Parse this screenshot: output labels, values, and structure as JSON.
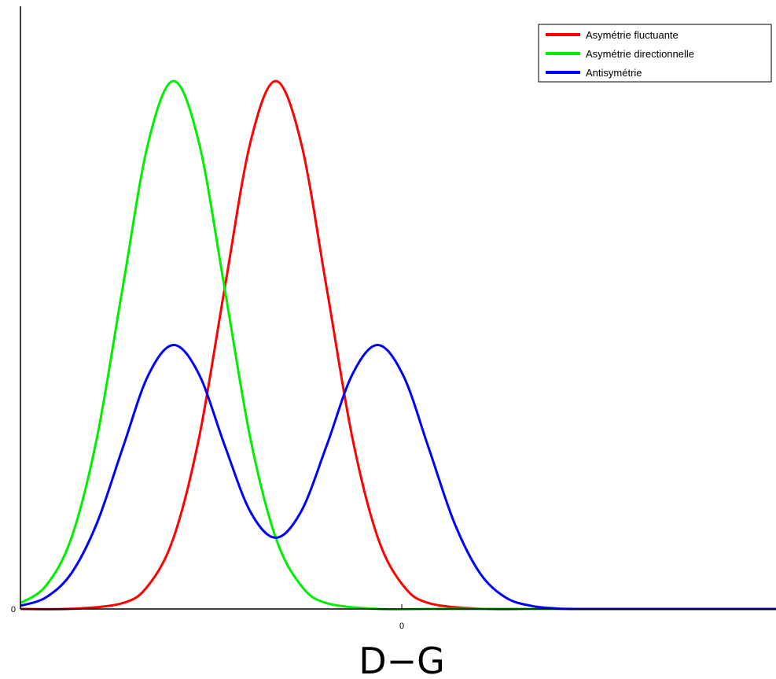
{
  "chart_data": {
    "type": "line",
    "title": "",
    "xlabel": "D−G",
    "ylabel": "",
    "x_tick_labels": [
      "0"
    ],
    "y_tick_labels": [
      "0"
    ],
    "xlim": [
      -5,
      9.8
    ],
    "ylim": [
      0,
      1.05
    ],
    "grid": false,
    "legend_position": "top-right",
    "series": [
      {
        "name": "Asymétrie fluctuante",
        "color": "#ff0000",
        "x": [
          -5,
          -4,
          -3,
          -2.5,
          -2,
          -1.5,
          -1,
          -0.5,
          0,
          0.5,
          1,
          1.5,
          2,
          2.5,
          3,
          4,
          5,
          6,
          7,
          8,
          9,
          9.8
        ],
        "y": [
          0.0,
          0.0003,
          0.011,
          0.044,
          0.135,
          0.325,
          0.607,
          0.882,
          1.0,
          0.882,
          0.607,
          0.325,
          0.135,
          0.044,
          0.011,
          0.0003,
          0.0,
          0.0,
          0.0,
          0.0,
          0.0,
          0.0
        ]
      },
      {
        "name": "Asymétrie directionnelle",
        "color": "#00ee00",
        "x": [
          -5,
          -4.5,
          -4,
          -3.5,
          -3,
          -2.5,
          -2,
          -1.5,
          -1,
          -0.5,
          0,
          0.5,
          1,
          2,
          3,
          4,
          5,
          6,
          7,
          8,
          9,
          9.8
        ],
        "y": [
          0.011,
          0.044,
          0.135,
          0.325,
          0.607,
          0.882,
          1.0,
          0.882,
          0.607,
          0.325,
          0.135,
          0.044,
          0.011,
          0.0,
          0.0,
          0.0,
          0.0,
          0.0,
          0.0,
          0.0,
          0.0,
          0.0
        ]
      },
      {
        "name": "Antisymétrie",
        "color": "#0000ff",
        "x": [
          -5,
          -4.5,
          -4,
          -3.5,
          -3,
          -2.5,
          -2,
          -1.5,
          -1,
          -0.5,
          0,
          0.5,
          1,
          1.5,
          2,
          2.5,
          3,
          3.5,
          4,
          4.5,
          5,
          5.5,
          6,
          6.5,
          7,
          7.5,
          8,
          8.5,
          9,
          9.8
        ],
        "y": [
          0.006,
          0.022,
          0.068,
          0.163,
          0.304,
          0.442,
          0.5,
          0.444,
          0.31,
          0.185,
          0.135,
          0.185,
          0.31,
          0.444,
          0.5,
          0.442,
          0.304,
          0.163,
          0.068,
          0.022,
          0.006,
          0.001,
          0.0,
          0.0,
          0.0,
          0.0,
          0.0,
          0.0,
          0.0,
          0.0
        ]
      }
    ]
  }
}
